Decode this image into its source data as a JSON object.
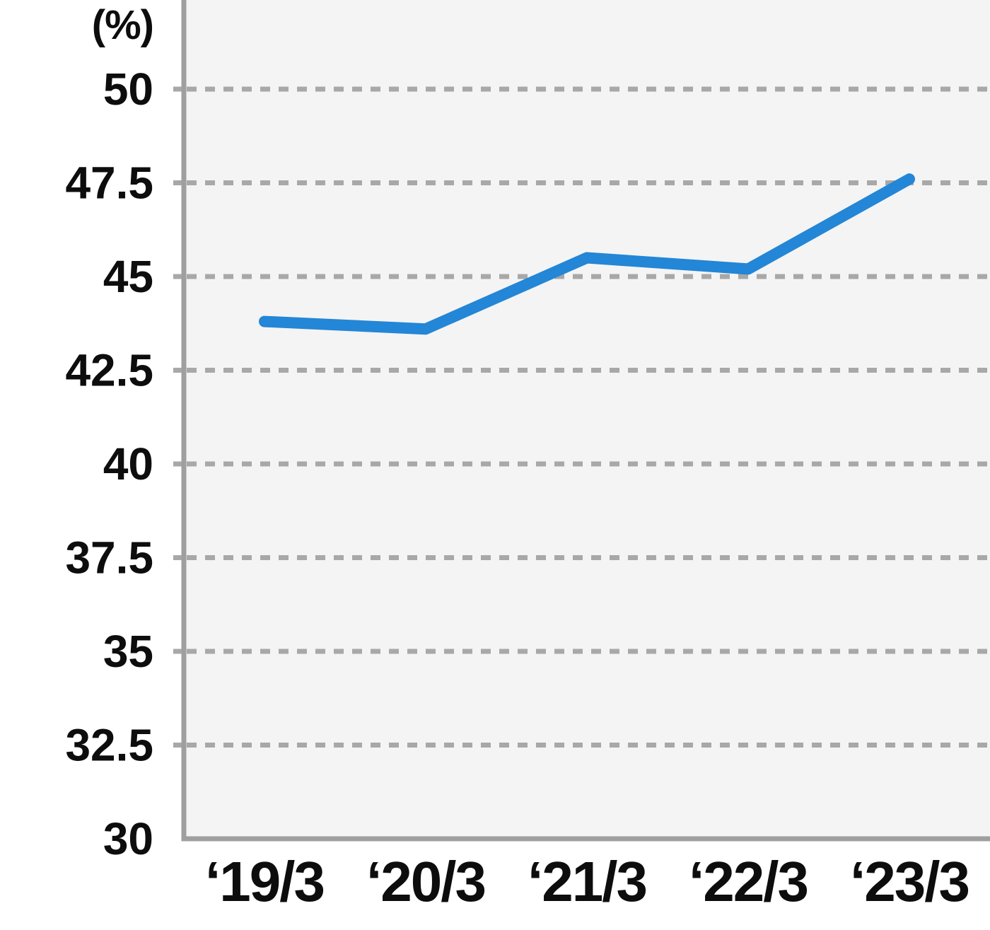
{
  "chart_data": {
    "type": "line",
    "title": "",
    "xlabel": "",
    "ylabel": "(%)",
    "categories": [
      "‘19/3",
      "‘20/3",
      "‘21/3",
      "‘22/3",
      "‘23/3"
    ],
    "values": [
      43.8,
      43.6,
      45.5,
      45.2,
      47.6
    ],
    "yticks": [
      50,
      47.5,
      45,
      42.5,
      40,
      37.5,
      35,
      32.5,
      30
    ],
    "ylim": [
      30,
      50
    ],
    "grid": "horizontal-dashed",
    "legend": "none"
  },
  "style": {
    "line_color": "#2386d6",
    "grid_color": "#a8a8a8",
    "axis_color": "#9f9f9f",
    "plot_bg_color": "#f4f4f4",
    "text_color": "#0d0d0d",
    "page_bg_color": "#ffffff"
  }
}
